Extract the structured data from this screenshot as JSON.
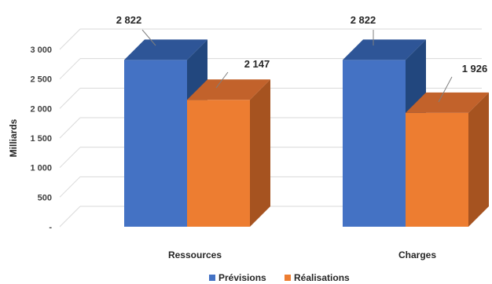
{
  "chart_data": {
    "type": "bar",
    "categories": [
      "Ressources",
      "Charges"
    ],
    "series": [
      {
        "name": "Prévisions",
        "values": [
          2822,
          2822
        ],
        "color": "#4472c4",
        "top_color": "#2e5597",
        "side_color": "#22477e"
      },
      {
        "name": "Réalisations",
        "values": [
          2147,
          1926
        ],
        "color": "#ed7d31",
        "top_color": "#c2622b",
        "side_color": "#a65320"
      }
    ],
    "data_labels": [
      [
        "2 822",
        "2 822"
      ],
      [
        "2 147",
        "1 926"
      ]
    ],
    "yticks": [
      {
        "value": 0,
        "label": "-"
      },
      {
        "value": 500,
        "label": "500"
      },
      {
        "value": 1000,
        "label": "1 000"
      },
      {
        "value": 1500,
        "label": "1 500"
      },
      {
        "value": 2000,
        "label": "2 000"
      },
      {
        "value": 2500,
        "label": "2 500"
      },
      {
        "value": 3000,
        "label": "3 000"
      }
    ],
    "ylabel": "Milliards",
    "ylim": [
      0,
      3000
    ],
    "legend_position": "bottom",
    "grid": true,
    "three_d": true
  }
}
